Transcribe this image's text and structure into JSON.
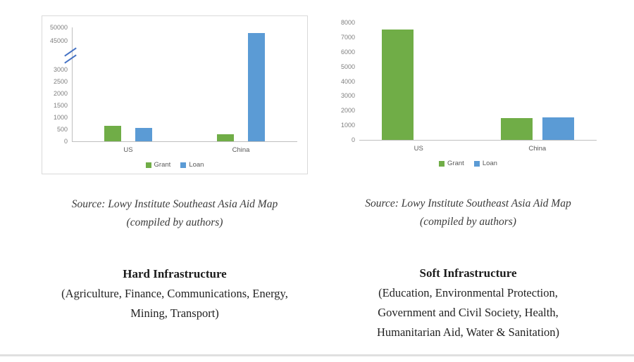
{
  "columns": [
    {
      "source_line1": "Source: Lowy Institute Southeast Asia Aid Map",
      "source_line2": "(compiled by authors)",
      "title": "Hard Infrastructure",
      "subtitle_lines": [
        "(Agriculture, Finance, Communications, Energy,",
        "Mining, Transport)"
      ]
    },
    {
      "source_line1": "Source: Lowy Institute Southeast Asia Aid Map",
      "source_line2": "(compiled by authors)",
      "title": "Soft Infrastructure",
      "subtitle_lines": [
        "(Education, Environmental Protection,",
        "Government and Civil Society, Health,",
        "Humanitarian Aid, Water & Sanitation)"
      ]
    }
  ],
  "chart_data": [
    {
      "type": "bar",
      "title": "Hard Infrastructure (Grant vs Loan)",
      "categories": [
        "US",
        "China"
      ],
      "series": [
        {
          "name": "Grant",
          "color": "#70ad47",
          "values": [
            650,
            300
          ]
        },
        {
          "name": "Loan",
          "color": "#5b9bd5",
          "values": [
            570,
            48000
          ]
        }
      ],
      "y_ticks_lower": [
        0,
        500,
        1000,
        1500,
        2000,
        2500,
        3000
      ],
      "y_ticks_upper": [
        45000,
        50000
      ],
      "axis_break": true,
      "legend": [
        "Grant",
        "Loan"
      ],
      "legend_position": "bottom",
      "grid": false
    },
    {
      "type": "bar",
      "title": "Soft Infrastructure (Grant vs Loan)",
      "categories": [
        "US",
        "China"
      ],
      "series": [
        {
          "name": "Grant",
          "color": "#70ad47",
          "values": [
            7500,
            1500
          ]
        },
        {
          "name": "Loan",
          "color": "#5b9bd5",
          "values": [
            0,
            1550
          ]
        }
      ],
      "ylim": [
        0,
        8000
      ],
      "y_step": 1000,
      "legend": [
        "Grant",
        "Loan"
      ],
      "legend_position": "bottom",
      "grid": false
    }
  ],
  "colors": {
    "grant_green": "#70ad47",
    "loan_blue": "#5b9bd5",
    "axis_gray": "#bfbfbf",
    "break_mark_blue": "#4472c4"
  }
}
